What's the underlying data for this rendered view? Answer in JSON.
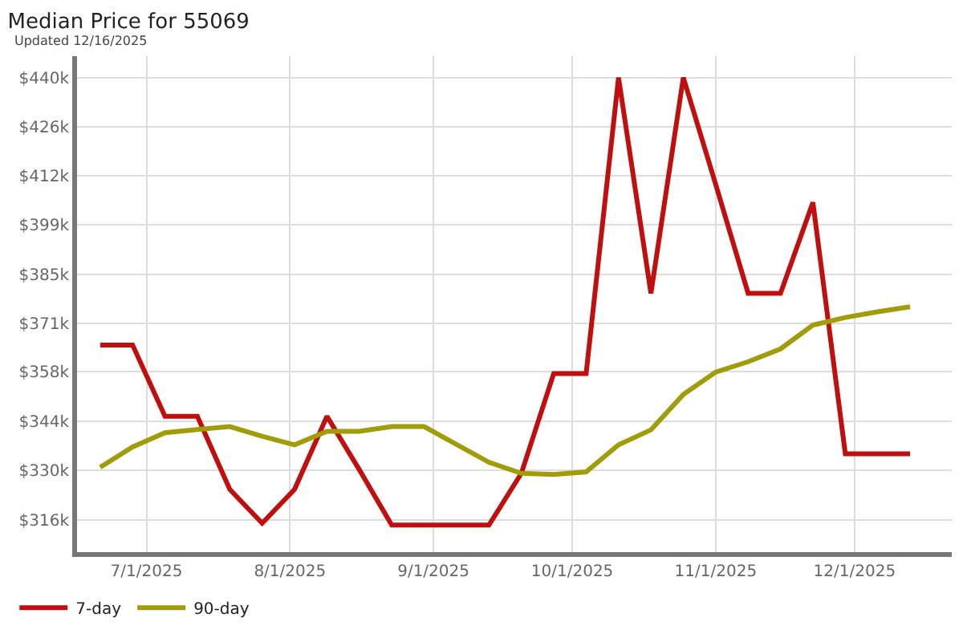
{
  "chart_data": {
    "type": "line",
    "title": "Median Price for 55069",
    "subtitle": "Updated 12/16/2025",
    "x": [
      "2025-06-21",
      "2025-06-28",
      "2025-07-05",
      "2025-07-12",
      "2025-07-19",
      "2025-07-26",
      "2025-08-02",
      "2025-08-09",
      "2025-08-16",
      "2025-08-23",
      "2025-08-30",
      "2025-09-06",
      "2025-09-13",
      "2025-09-20",
      "2025-09-27",
      "2025-10-04",
      "2025-10-11",
      "2025-10-18",
      "2025-10-25",
      "2025-11-01",
      "2025-11-08",
      "2025-11-15",
      "2025-11-22",
      "2025-11-29",
      "2025-12-06",
      "2025-12-13"
    ],
    "series": [
      {
        "name": "7-day",
        "color": "#c00f0f",
        "values": [
          365000,
          365000,
          345000,
          345000,
          324500,
          315000,
          324500,
          345000,
          330000,
          314500,
          314500,
          314500,
          314500,
          329000,
          357000,
          357000,
          440000,
          379500,
          440000,
          410000,
          379500,
          379500,
          405000,
          334500,
          334500,
          334500
        ]
      },
      {
        "name": "90-day",
        "color": "#a09c0a",
        "values": [
          330700,
          336400,
          340400,
          341300,
          342100,
          339400,
          337000,
          340800,
          340800,
          342100,
          342100,
          337100,
          332100,
          329000,
          328700,
          329400,
          337000,
          341200,
          351100,
          357400,
          360300,
          363900,
          370600,
          372700,
          374300,
          375700
        ]
      }
    ],
    "xlim": [
      "2025-06-16",
      "2025-12-22"
    ],
    "xticks": [
      {
        "value": "2025-07-01",
        "label": "7/1/2025"
      },
      {
        "value": "2025-08-01",
        "label": "8/1/2025"
      },
      {
        "value": "2025-09-01",
        "label": "9/1/2025"
      },
      {
        "value": "2025-10-01",
        "label": "10/1/2025"
      },
      {
        "value": "2025-11-01",
        "label": "11/1/2025"
      },
      {
        "value": "2025-12-01",
        "label": "12/1/2025"
      }
    ],
    "ylim": [
      306900,
      446000
    ],
    "yticks": [
      {
        "value": 316000,
        "label": "$316k"
      },
      {
        "value": 329778,
        "label": "$330k"
      },
      {
        "value": 343556,
        "label": "$344k"
      },
      {
        "value": 357500,
        "label": "$358k"
      },
      {
        "value": 371111,
        "label": "$371k"
      },
      {
        "value": 384889,
        "label": "$385k"
      },
      {
        "value": 398667,
        "label": "$399k"
      },
      {
        "value": 412444,
        "label": "$412k"
      },
      {
        "value": 426222,
        "label": "$426k"
      },
      {
        "value": 440000,
        "label": "$440k"
      }
    ],
    "grid": true,
    "legend": "bottom left",
    "marker": "none",
    "line_style": "solid"
  }
}
